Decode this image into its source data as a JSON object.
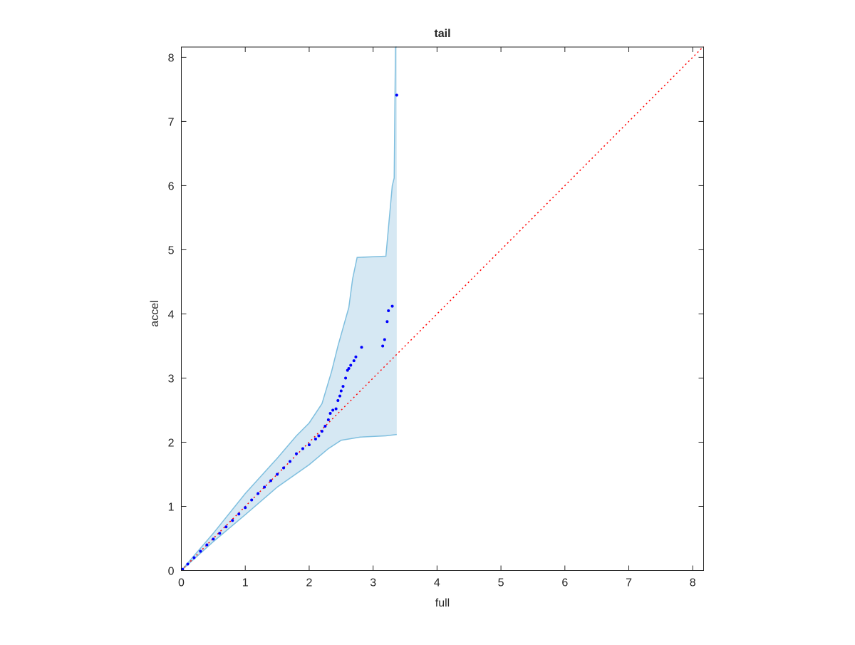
{
  "chart_data": {
    "type": "qqplot",
    "title": "tail",
    "xlabel": "full",
    "ylabel": "accel",
    "xlim": [
      0,
      8.17
    ],
    "ylim": [
      0,
      8.16
    ],
    "xticks": [
      0,
      1,
      2,
      3,
      4,
      5,
      6,
      7,
      8
    ],
    "yticks": [
      0,
      1,
      2,
      3,
      4,
      5,
      6,
      7,
      8
    ],
    "points": {
      "color": "#0000ff",
      "x": [
        0.02,
        0.1,
        0.2,
        0.3,
        0.4,
        0.5,
        0.6,
        0.7,
        0.8,
        0.9,
        1.0,
        1.1,
        1.2,
        1.3,
        1.4,
        1.5,
        1.6,
        1.7,
        1.8,
        1.9,
        2.0,
        2.1,
        2.15,
        2.2,
        2.25,
        2.3,
        2.33,
        2.37,
        2.42,
        2.45,
        2.48,
        2.5,
        2.53,
        2.57,
        2.6,
        2.62,
        2.65,
        2.7,
        2.73,
        2.82,
        3.15,
        3.18,
        3.22,
        3.24,
        3.3,
        3.37
      ],
      "y": [
        0.02,
        0.1,
        0.2,
        0.3,
        0.4,
        0.49,
        0.58,
        0.68,
        0.78,
        0.88,
        0.98,
        1.1,
        1.2,
        1.3,
        1.4,
        1.5,
        1.6,
        1.7,
        1.82,
        1.9,
        1.96,
        2.05,
        2.1,
        2.17,
        2.25,
        2.35,
        2.45,
        2.5,
        2.52,
        2.65,
        2.72,
        2.8,
        2.87,
        3.0,
        3.12,
        3.15,
        3.2,
        3.27,
        3.33,
        3.48,
        3.5,
        3.6,
        3.88,
        4.05,
        4.12,
        7.41
      ]
    },
    "reference_line": {
      "color": "#ff0000",
      "x": [
        0,
        8.17
      ],
      "y": [
        0,
        8.17
      ]
    },
    "band": {
      "color": "#7fbfdf",
      "fill": "#d6e8f3",
      "upper": {
        "x": [
          0,
          0.5,
          1.0,
          1.5,
          1.8,
          2.0,
          2.2,
          2.35,
          2.45,
          2.62,
          2.68,
          2.75,
          3.2,
          3.3,
          3.33,
          3.35,
          3.37
        ],
        "y": [
          0,
          0.58,
          1.2,
          1.75,
          2.1,
          2.3,
          2.6,
          3.1,
          3.5,
          4.1,
          4.55,
          4.88,
          4.9,
          6.0,
          6.12,
          8.16,
          8.16
        ]
      },
      "lower": {
        "x": [
          0,
          0.5,
          1.0,
          1.5,
          2.0,
          2.3,
          2.5,
          2.8,
          3.2,
          3.37
        ],
        "y": [
          0,
          0.45,
          0.87,
          1.3,
          1.65,
          1.9,
          2.03,
          2.08,
          2.1,
          2.12
        ]
      }
    }
  }
}
